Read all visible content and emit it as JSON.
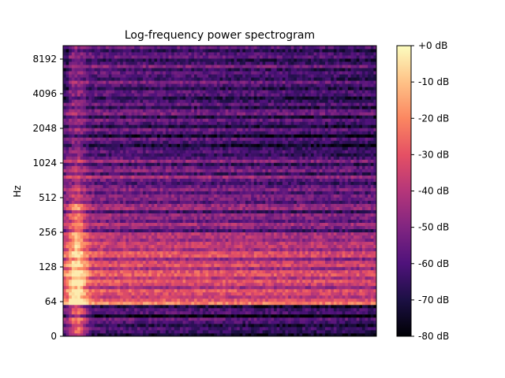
{
  "chart_data": {
    "type": "heatmap",
    "title": "Log-frequency power spectrogram",
    "xlabel": "",
    "ylabel": "Hz",
    "y_scale": "log2 (symlog near 0)",
    "y_ticks": [
      {
        "label": "0",
        "value": 0
      },
      {
        "label": "64",
        "value": 64
      },
      {
        "label": "128",
        "value": 128
      },
      {
        "label": "256",
        "value": 256
      },
      {
        "label": "512",
        "value": 512
      },
      {
        "label": "1024",
        "value": 1024
      },
      {
        "label": "2048",
        "value": 2048
      },
      {
        "label": "4096",
        "value": 4096
      },
      {
        "label": "8192",
        "value": 8192
      }
    ],
    "colorbar": {
      "colormap": "magma",
      "range": [
        -80,
        0
      ],
      "ticks": [
        {
          "label": "+0 dB",
          "value": 0
        },
        {
          "label": "-10 dB",
          "value": -10
        },
        {
          "label": "-20 dB",
          "value": -20
        },
        {
          "label": "-30 dB",
          "value": -30
        },
        {
          "label": "-40 dB",
          "value": -40
        },
        {
          "label": "-50 dB",
          "value": -50
        },
        {
          "label": "-60 dB",
          "value": -60
        },
        {
          "label": "-70 dB",
          "value": -70
        },
        {
          "label": "-80 dB",
          "value": -80
        }
      ]
    },
    "description_values": {
      "onset_peak_db": -3,
      "low_band_db": -25,
      "mid_band_db": -45,
      "high_band_db": -55
    }
  }
}
